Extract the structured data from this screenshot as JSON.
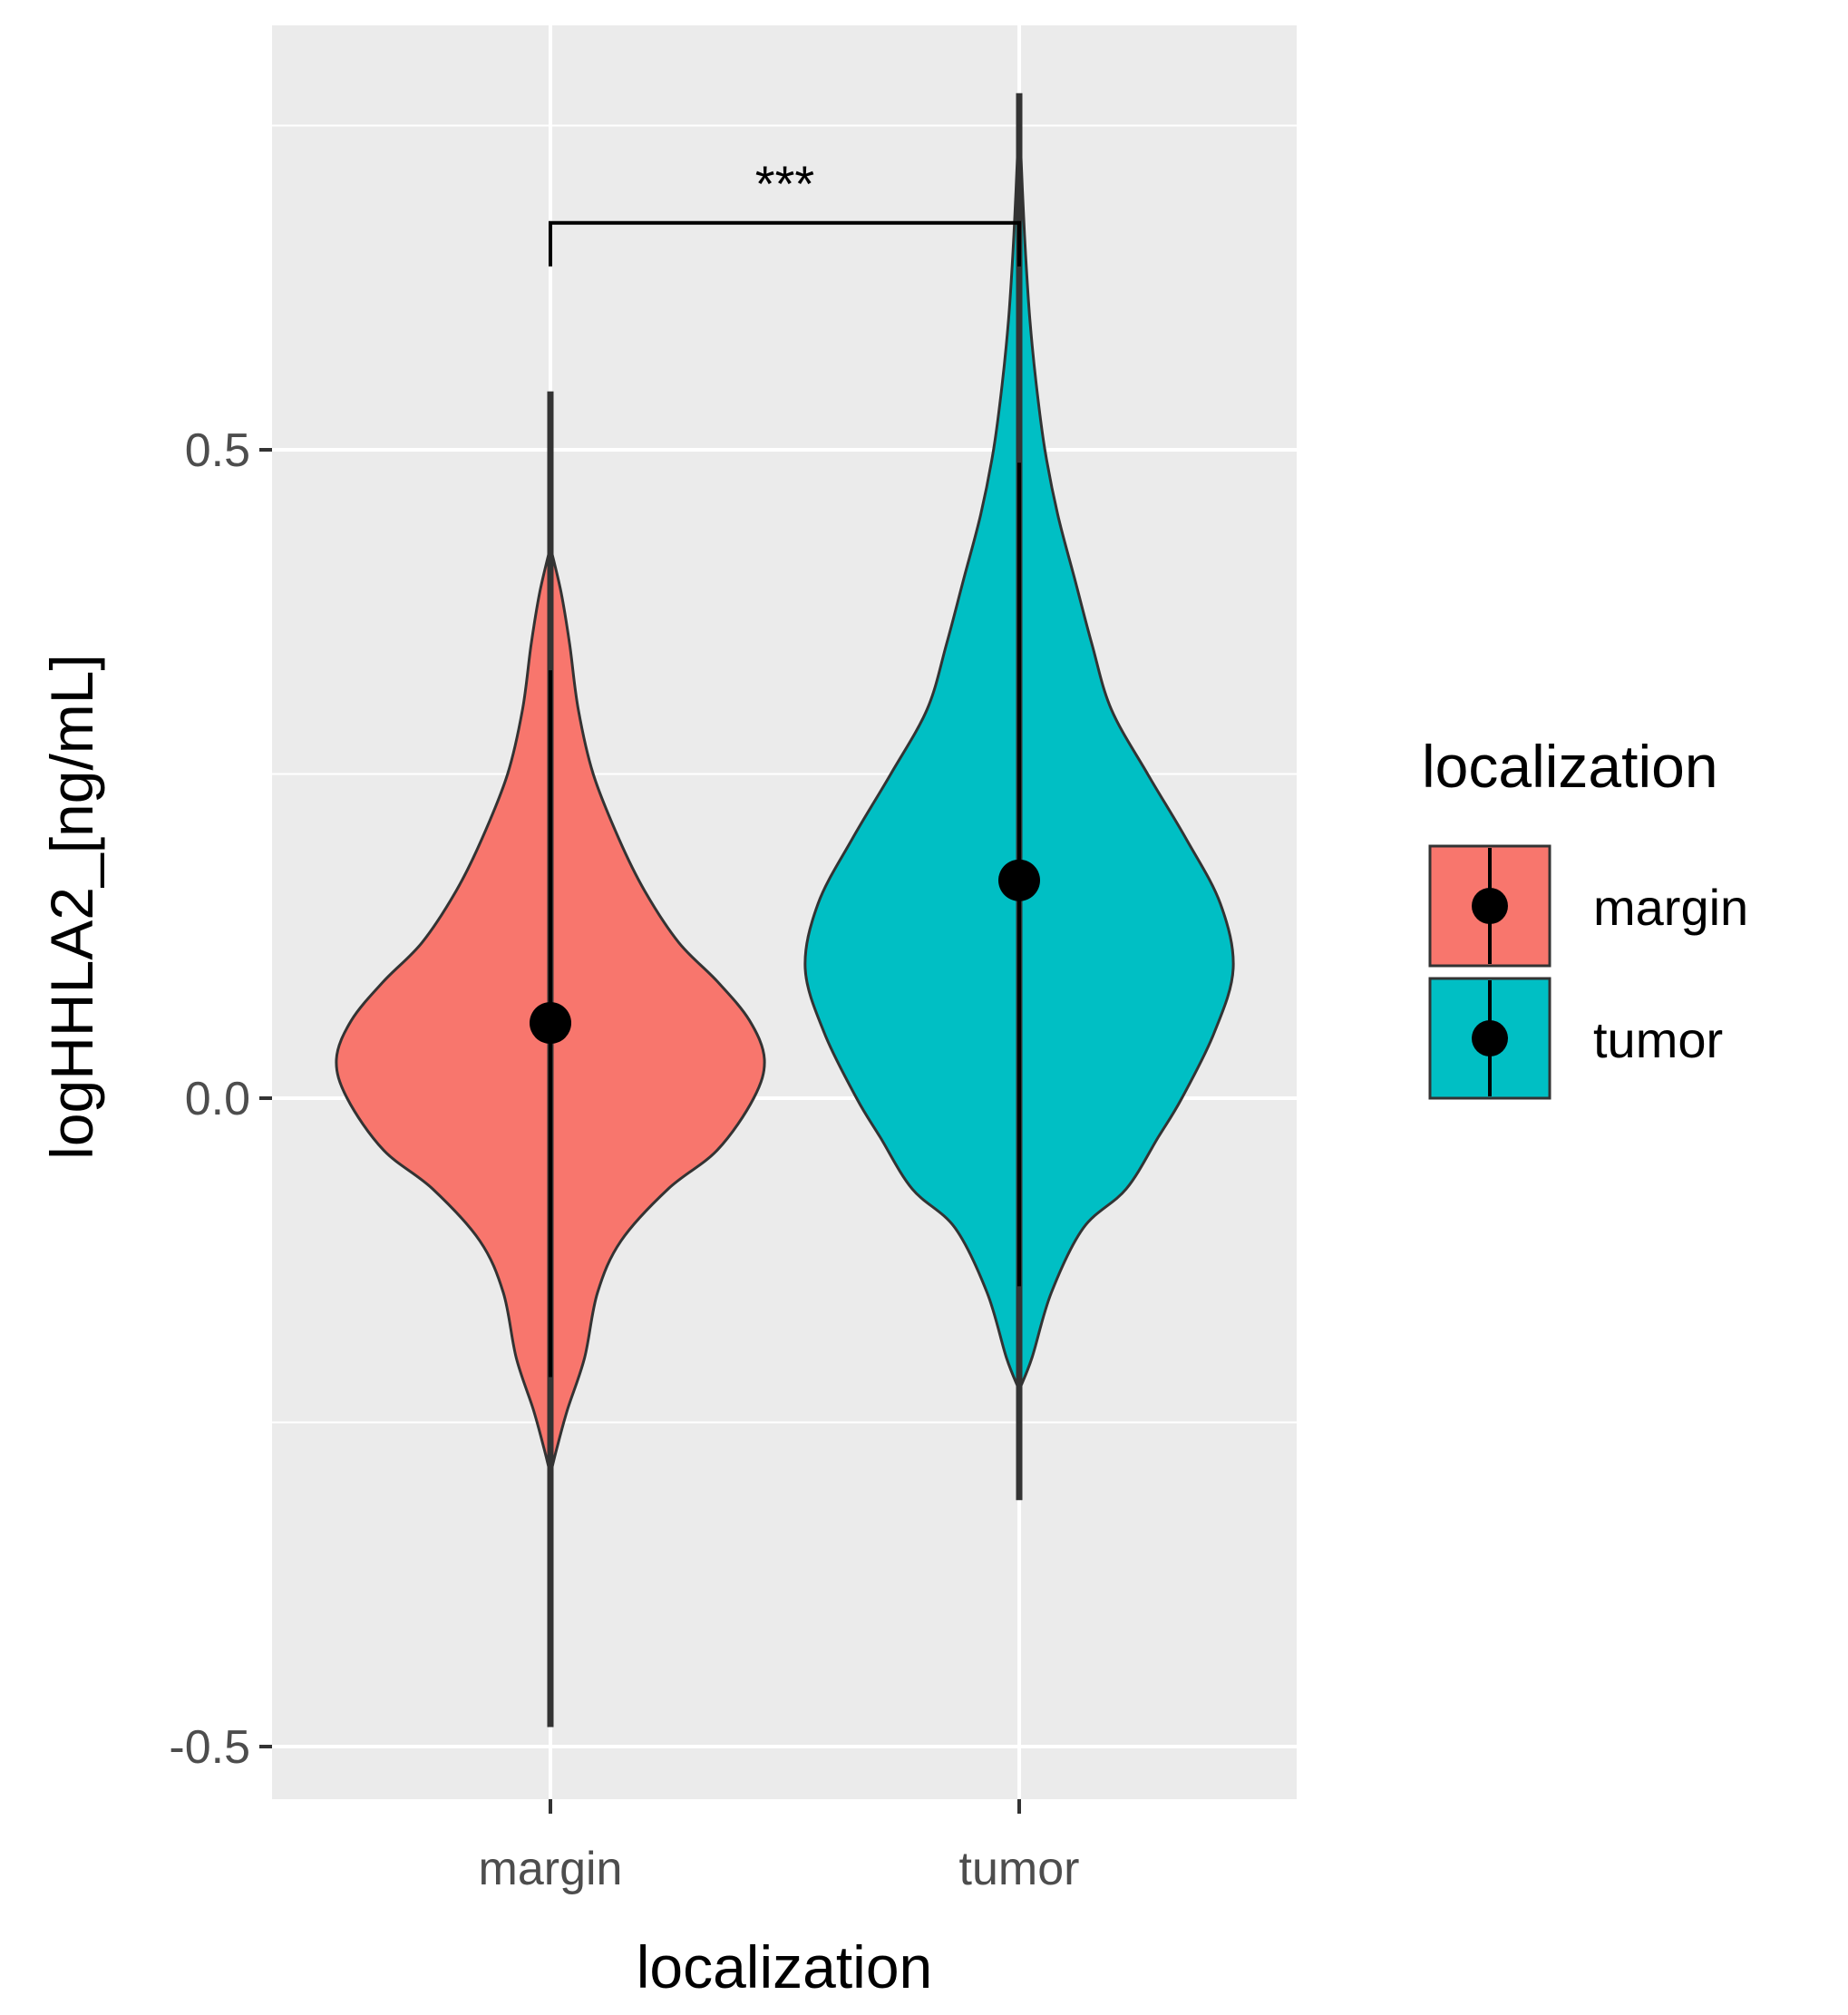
{
  "chart_data": {
    "type": "violin",
    "xlabel": "localization",
    "ylabel": "logHHLA2_[ng/mL]",
    "categories": [
      "margin",
      "tumor"
    ],
    "yticks": [
      -0.5,
      0.0,
      0.5
    ],
    "ytick_labels": [
      "-0.5",
      "0.0",
      "0.5"
    ],
    "ylim": [
      -0.54,
      0.76
    ],
    "grid": true,
    "panel_background": "#ebebeb",
    "legend": {
      "title": "localization",
      "position": "right",
      "entries": [
        {
          "label": "margin",
          "color": "#f8766d"
        },
        {
          "label": "tumor",
          "color": "#00bfc4"
        }
      ]
    },
    "series": [
      {
        "category": "margin",
        "color": "#f8766d",
        "mean": 0.058,
        "range_line": [
          0.33,
          -0.215
        ],
        "whisker": [
          0.545,
          -0.485
        ],
        "density_profile": [
          [
            -0.29,
            0.0
          ],
          [
            -0.27,
            0.03
          ],
          [
            -0.24,
            0.08
          ],
          [
            -0.2,
            0.16
          ],
          [
            -0.15,
            0.22
          ],
          [
            -0.11,
            0.33
          ],
          [
            -0.07,
            0.55
          ],
          [
            -0.04,
            0.78
          ],
          [
            0.0,
            0.95
          ],
          [
            0.03,
            1.0
          ],
          [
            0.06,
            0.93
          ],
          [
            0.09,
            0.78
          ],
          [
            0.12,
            0.6
          ],
          [
            0.16,
            0.44
          ],
          [
            0.2,
            0.32
          ],
          [
            0.25,
            0.2
          ],
          [
            0.3,
            0.13
          ],
          [
            0.35,
            0.09
          ],
          [
            0.39,
            0.05
          ],
          [
            0.425,
            0.0
          ]
        ]
      },
      {
        "category": "tumor",
        "color": "#00bfc4",
        "mean": 0.168,
        "range_line": [
          0.49,
          -0.145
        ],
        "whisker": [
          0.775,
          -0.31
        ],
        "density_profile": [
          [
            -0.225,
            0.0
          ],
          [
            -0.2,
            0.06
          ],
          [
            -0.15,
            0.15
          ],
          [
            -0.1,
            0.3
          ],
          [
            -0.07,
            0.5
          ],
          [
            -0.03,
            0.65
          ],
          [
            0.0,
            0.76
          ],
          [
            0.05,
            0.91
          ],
          [
            0.1,
            1.0
          ],
          [
            0.15,
            0.94
          ],
          [
            0.2,
            0.78
          ],
          [
            0.25,
            0.6
          ],
          [
            0.3,
            0.43
          ],
          [
            0.35,
            0.34
          ],
          [
            0.4,
            0.26
          ],
          [
            0.45,
            0.18
          ],
          [
            0.5,
            0.12
          ],
          [
            0.55,
            0.08
          ],
          [
            0.6,
            0.05
          ],
          [
            0.65,
            0.03
          ],
          [
            0.7,
            0.015
          ],
          [
            0.76,
            0.0
          ]
        ]
      }
    ],
    "annotations": [
      {
        "type": "significance_bracket",
        "from": "margin",
        "to": "tumor",
        "y": 0.675,
        "text": "***"
      }
    ]
  }
}
